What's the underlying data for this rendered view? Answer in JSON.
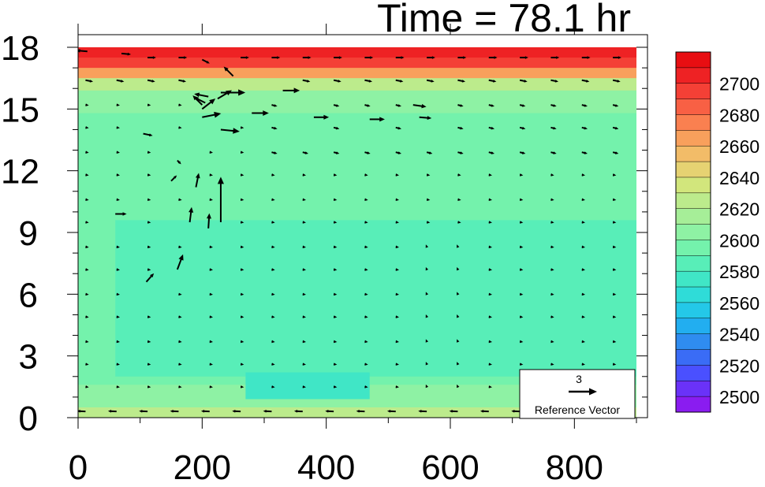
{
  "chart_data": {
    "type": "vector-contour",
    "title": "Time = 78.1 hr",
    "xlabel": "",
    "ylabel": "",
    "xlim": [
      0,
      900
    ],
    "ylim": [
      0,
      18
    ],
    "x_ticks": [
      "0",
      "200",
      "400",
      "600",
      "800"
    ],
    "y_ticks": [
      "0",
      "3",
      "6",
      "9",
      "12",
      "15",
      "18"
    ],
    "colorbar": {
      "ticks": [
        "2500",
        "2520",
        "2540",
        "2560",
        "2580",
        "2600",
        "2620",
        "2640",
        "2660",
        "2680",
        "2700"
      ],
      "levels": [
        2490,
        2500,
        2510,
        2520,
        2530,
        2540,
        2550,
        2560,
        2570,
        2580,
        2590,
        2600,
        2610,
        2620,
        2630,
        2640,
        2650,
        2660,
        2670,
        2680,
        2690,
        2700,
        2710
      ],
      "colors": [
        "#8a1cf0",
        "#6a32f8",
        "#4a50ff",
        "#3a6cf6",
        "#2f8cf0",
        "#22aef0",
        "#24c8e8",
        "#2fdcd8",
        "#40e6c6",
        "#58eeb8",
        "#74f2ac",
        "#8ef2a4",
        "#a6ee98",
        "#bceb8c",
        "#d2e67c",
        "#e6d272",
        "#f2bc68",
        "#f8a05c",
        "#fa8050",
        "#f86044",
        "#f44036",
        "#ee2224",
        "#e80e12"
      ]
    },
    "field_regions": [
      {
        "x": [
          0,
          900
        ],
        "y": [
          0,
          18
        ],
        "value": 2605
      },
      {
        "x": [
          0,
          900
        ],
        "y": [
          0,
          14.8
        ],
        "value": 2598
      },
      {
        "x": [
          0,
          900
        ],
        "y": [
          0,
          11
        ],
        "value": 2592
      },
      {
        "x": [
          60,
          900
        ],
        "y": [
          2,
          9.6
        ],
        "value": 2586
      },
      {
        "x": [
          280,
          900
        ],
        "y": [
          3.5,
          9.4
        ],
        "value": 2583
      },
      {
        "x": [
          0,
          900
        ],
        "y": [
          0,
          1.6
        ],
        "value": 2608
      },
      {
        "x": [
          0,
          900
        ],
        "y": [
          0,
          0.5
        ],
        "value": 2620
      },
      {
        "x": [
          270,
          470
        ],
        "y": [
          0.9,
          2.2
        ],
        "value": 2572
      },
      {
        "x": [
          0,
          900
        ],
        "y": [
          15.9,
          16.9
        ],
        "value": 2628
      },
      {
        "x": [
          0,
          900
        ],
        "y": [
          16.5,
          17.2
        ],
        "value": 2660
      },
      {
        "x": [
          0,
          900
        ],
        "y": [
          17.0,
          17.6
        ],
        "value": 2690
      },
      {
        "x": [
          0,
          900
        ],
        "y": [
          17.5,
          18
        ],
        "value": 2708
      }
    ],
    "vector_grid": {
      "x": [
        12,
        62,
        112,
        162,
        212,
        262,
        312,
        362,
        412,
        462,
        512,
        562,
        612,
        662,
        712,
        762,
        812,
        862
      ],
      "y": [
        0.3,
        1.5,
        2.6,
        3.7,
        4.9,
        6.0,
        7.2,
        8.3,
        9.5,
        10.6,
        11.8,
        12.9,
        14.1,
        15.2,
        16.4,
        17.5
      ]
    },
    "vectors": [
      {
        "x": 15,
        "y": 17.8,
        "u": -1.2,
        "v": 0.1
      },
      {
        "x": 70,
        "y": 17.7,
        "u": 1.0,
        "v": -0.1
      },
      {
        "x": 200,
        "y": 17.4,
        "u": 0.8,
        "v": -0.4
      },
      {
        "x": 250,
        "y": 16.6,
        "u": -1.0,
        "v": 1.0
      },
      {
        "x": 225,
        "y": 15.5,
        "u": 1.5,
        "v": 0.9
      },
      {
        "x": 200,
        "y": 15.0,
        "u": 1.4,
        "v": 1.1
      },
      {
        "x": 200,
        "y": 15.2,
        "u": -1.0,
        "v": 1.0
      },
      {
        "x": 210,
        "y": 15.6,
        "u": -1.5,
        "v": 0.3
      },
      {
        "x": 205,
        "y": 15.3,
        "u": -1.2,
        "v": 0.6
      },
      {
        "x": 230,
        "y": 15.8,
        "u": 2.6,
        "v": 0.0
      },
      {
        "x": 330,
        "y": 15.9,
        "u": 1.8,
        "v": 0.0
      },
      {
        "x": 200,
        "y": 14.6,
        "u": 2.0,
        "v": 0.4
      },
      {
        "x": 280,
        "y": 14.8,
        "u": 1.8,
        "v": 0.0
      },
      {
        "x": 380,
        "y": 14.6,
        "u": 1.6,
        "v": 0.0
      },
      {
        "x": 470,
        "y": 14.5,
        "u": 1.6,
        "v": 0.0
      },
      {
        "x": 550,
        "y": 14.6,
        "u": 1.3,
        "v": -0.1
      },
      {
        "x": 540,
        "y": 15.2,
        "u": 1.4,
        "v": -0.2
      },
      {
        "x": 230,
        "y": 14.0,
        "u": 2.0,
        "v": -0.2
      },
      {
        "x": 230,
        "y": 9.5,
        "u": 0.0,
        "v": 4.8
      },
      {
        "x": 210,
        "y": 9.2,
        "u": 0.1,
        "v": 1.6
      },
      {
        "x": 180,
        "y": 9.5,
        "u": 0.2,
        "v": 1.6
      },
      {
        "x": 160,
        "y": 7.2,
        "u": 0.6,
        "v": 1.6
      },
      {
        "x": 110,
        "y": 6.6,
        "u": 0.8,
        "v": 0.9
      },
      {
        "x": 60,
        "y": 9.9,
        "u": 1.2,
        "v": 0.0
      },
      {
        "x": 190,
        "y": 11.2,
        "u": 0.3,
        "v": 1.5
      },
      {
        "x": 150,
        "y": 11.5,
        "u": 0.6,
        "v": 0.6
      },
      {
        "x": 160,
        "y": 12.5,
        "u": 0.4,
        "v": -0.4
      },
      {
        "x": 105,
        "y": 13.8,
        "u": 1.0,
        "v": -0.2
      }
    ],
    "reference_vector": {
      "magnitude": "3",
      "label": "Reference Vector"
    }
  }
}
